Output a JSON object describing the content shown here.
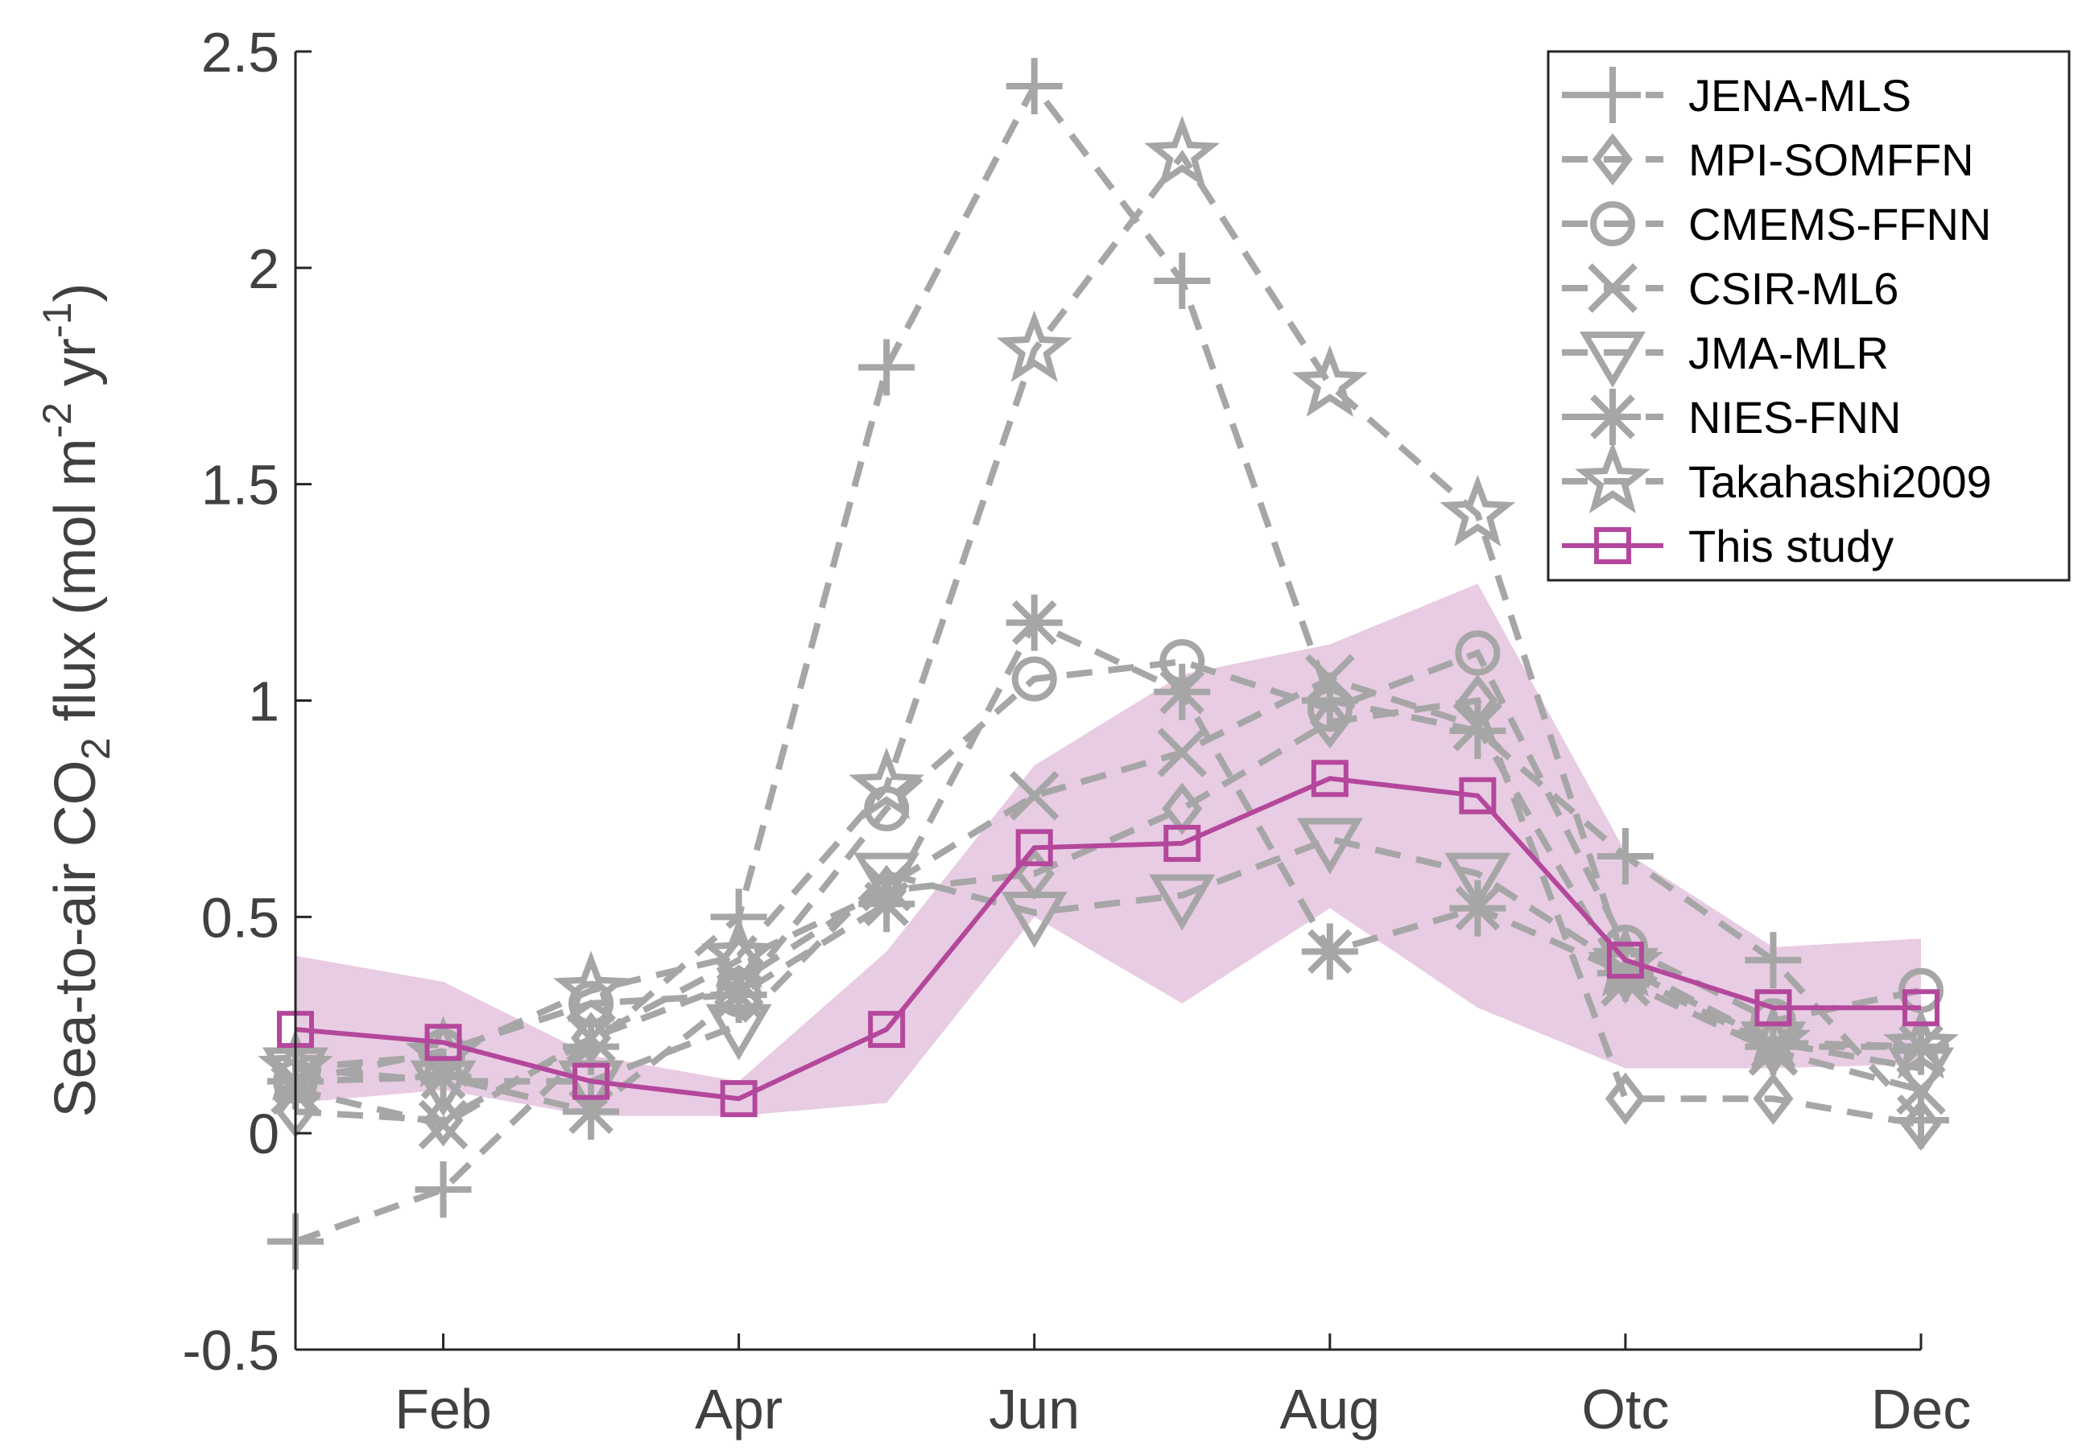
{
  "chart_data": {
    "type": "line",
    "title": "",
    "xlabel": "",
    "ylabel": {
      "part1": "Sea-to-air CO",
      "sub": "2",
      "part2": " flux (mol m",
      "sup1": "-2",
      "part3": " yr",
      "sup2": "-1",
      "part4": ")"
    },
    "xlim": [
      1,
      12
    ],
    "ylim": [
      -0.5,
      2.5
    ],
    "x": [
      1,
      2,
      3,
      4,
      5,
      6,
      7,
      8,
      9,
      10,
      11,
      12
    ],
    "x_ticks": [
      2,
      4,
      6,
      8,
      10,
      12
    ],
    "x_tick_labels": [
      "Feb",
      "Apr",
      "Jun",
      "Aug",
      "Otc",
      "Dec"
    ],
    "y_ticks": [
      -0.5,
      0,
      0.5,
      1,
      1.5,
      2,
      2.5
    ],
    "y_tick_labels": [
      "-0.5",
      "0",
      "0.5",
      "1",
      "1.5",
      "2",
      "2.5"
    ],
    "legend_position": "top-right",
    "series": [
      {
        "name": "JENA-MLS",
        "marker": "plus",
        "style": "dashed",
        "color": "#a6a6a6",
        "values": [
          -0.25,
          -0.13,
          0.2,
          0.5,
          1.77,
          2.42,
          1.97,
          1.0,
          0.93,
          0.64,
          0.4,
          0.03
        ]
      },
      {
        "name": "MPI-SOMFFN",
        "marker": "diamond",
        "style": "dashed",
        "color": "#a6a6a6",
        "values": [
          0.05,
          0.03,
          0.22,
          0.4,
          0.56,
          0.6,
          0.75,
          0.95,
          1.0,
          0.08,
          0.08,
          0.02
        ]
      },
      {
        "name": "CMEMS-FFNN",
        "marker": "circle",
        "style": "dashed",
        "color": "#a6a6a6",
        "values": [
          0.12,
          0.19,
          0.3,
          0.32,
          0.75,
          1.05,
          1.09,
          0.98,
          1.11,
          0.43,
          0.26,
          0.33
        ]
      },
      {
        "name": "CSIR-ML6",
        "marker": "x",
        "style": "dashed",
        "color": "#a6a6a6",
        "values": [
          0.1,
          0.02,
          0.22,
          0.35,
          0.57,
          0.78,
          0.88,
          1.05,
          0.94,
          0.35,
          0.19,
          0.1
        ]
      },
      {
        "name": "JMA-MLR",
        "marker": "triangle-down",
        "style": "dashed",
        "color": "#a6a6a6",
        "values": [
          0.15,
          0.12,
          0.12,
          0.25,
          0.6,
          0.51,
          0.55,
          0.68,
          0.6,
          0.38,
          0.21,
          0.15
        ]
      },
      {
        "name": "NIES-FNN",
        "marker": "asterisk",
        "style": "dashed",
        "color": "#a6a6a6",
        "values": [
          0.12,
          0.13,
          0.05,
          0.32,
          0.53,
          1.18,
          1.02,
          0.42,
          0.52,
          0.37,
          0.2,
          0.2
        ]
      },
      {
        "name": "Takahashi2009",
        "marker": "star",
        "style": "dashed",
        "color": "#a6a6a6",
        "values": [
          0.15,
          0.18,
          0.33,
          0.41,
          0.8,
          1.81,
          2.26,
          1.73,
          1.43,
          0.39,
          0.21,
          0.2
        ]
      },
      {
        "name": "This study",
        "marker": "square",
        "style": "solid",
        "color": "#b4479c",
        "values": [
          0.24,
          0.21,
          0.12,
          0.08,
          0.24,
          0.66,
          0.67,
          0.82,
          0.78,
          0.4,
          0.29,
          0.29
        ]
      }
    ],
    "band": {
      "series": "This study",
      "color": "#e8cce3",
      "upper": [
        0.41,
        0.35,
        0.18,
        0.12,
        0.42,
        0.85,
        1.06,
        1.13,
        1.27,
        0.65,
        0.43,
        0.45
      ],
      "lower": [
        0.07,
        0.1,
        0.04,
        0.04,
        0.07,
        0.5,
        0.3,
        0.52,
        0.29,
        0.15,
        0.15,
        0.16
      ]
    }
  }
}
